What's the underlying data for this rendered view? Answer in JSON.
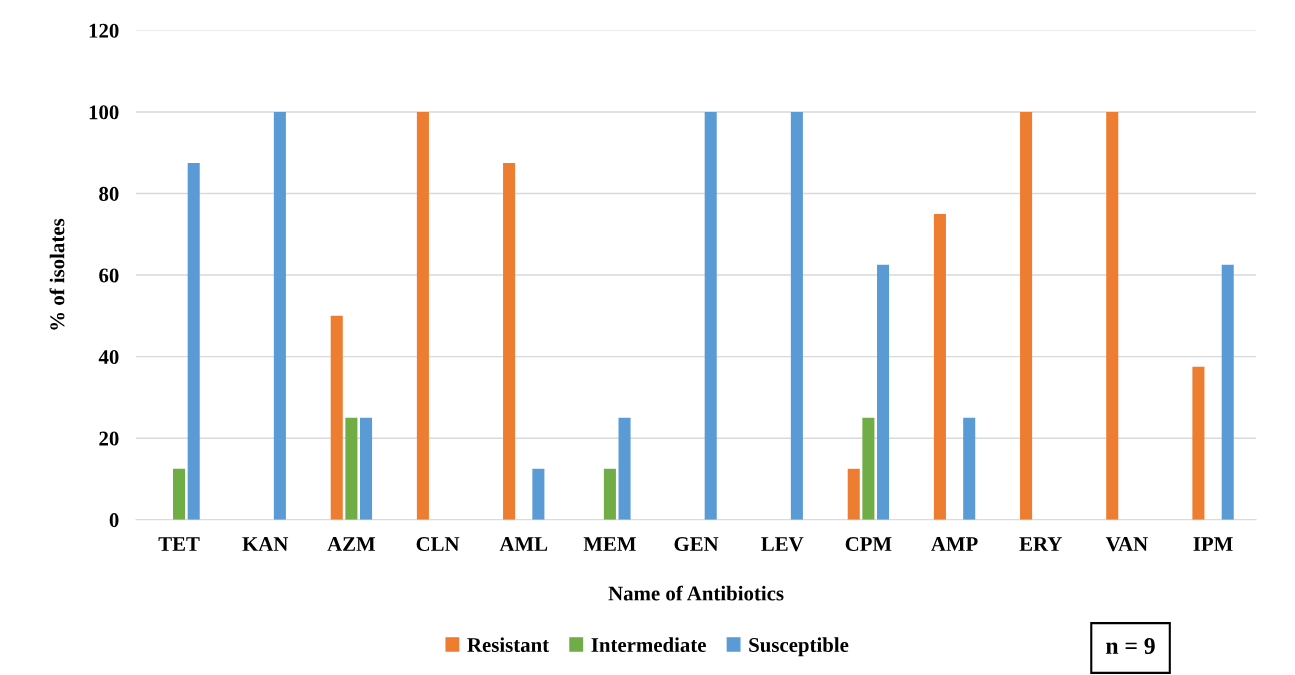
{
  "chart_data": {
    "type": "bar",
    "xlabel": "Name of Antibiotics",
    "ylabel": "% of isolates",
    "categories": [
      "TET",
      "KAN",
      "AZM",
      "CLN",
      "AML",
      "MEM",
      "GEN",
      "LEV",
      "CPM",
      "AMP",
      "ERY",
      "VAN",
      "IPM"
    ],
    "series": [
      {
        "name": "Resistant",
        "color": "#ed7d31",
        "values": [
          0,
          0,
          50,
          100,
          87.5,
          0,
          0,
          0,
          12.5,
          75,
          100,
          100,
          37.5
        ]
      },
      {
        "name": "Intermediate",
        "color": "#70ad47",
        "values": [
          12.5,
          0,
          25,
          0,
          0,
          12.5,
          0,
          0,
          25,
          0,
          0,
          0,
          0
        ]
      },
      {
        "name": "Susceptible",
        "color": "#5b9bd5",
        "values": [
          87.5,
          100,
          25,
          0,
          12.5,
          25,
          100,
          100,
          62.5,
          25,
          0,
          0,
          62.5
        ]
      }
    ],
    "ylim": [
      0,
      120
    ],
    "yticks": [
      0,
      20,
      40,
      60,
      80,
      100,
      120
    ],
    "grid": "y",
    "legend": "bottom",
    "annotations": [
      "n = 9"
    ]
  }
}
